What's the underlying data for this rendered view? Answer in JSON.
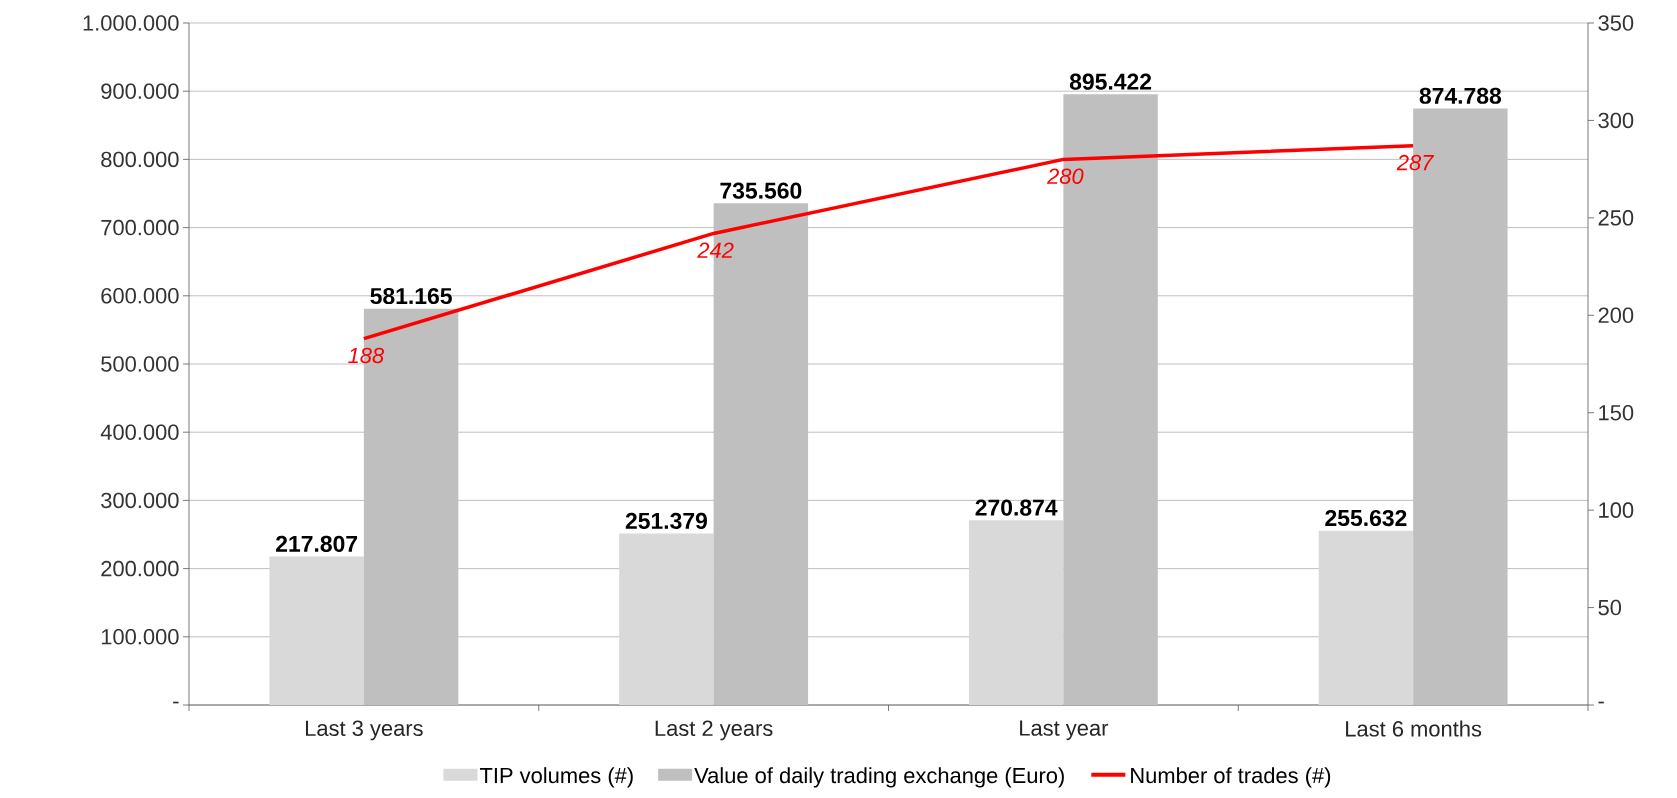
{
  "chart_data": {
    "type": "bar",
    "categories": [
      "Last 3 years",
      "Last 2 years",
      "Last year",
      "Last 6 months"
    ],
    "ylim": [
      0,
      1000000
    ],
    "yticks": [
      {
        "value": 0,
        "label": "-"
      },
      {
        "value": 100000,
        "label": "100.000"
      },
      {
        "value": 200000,
        "label": "200.000"
      },
      {
        "value": 300000,
        "label": "300.000"
      },
      {
        "value": 400000,
        "label": "400.000"
      },
      {
        "value": 500000,
        "label": "500.000"
      },
      {
        "value": 600000,
        "label": "600.000"
      },
      {
        "value": 700000,
        "label": "700.000"
      },
      {
        "value": 800000,
        "label": "800.000"
      },
      {
        "value": 900000,
        "label": "900.000"
      },
      {
        "value": 1000000,
        "label": "1.000.000"
      }
    ],
    "y2lim": [
      0,
      350
    ],
    "y2ticks": [
      {
        "value": 0,
        "label": "-"
      },
      50,
      100,
      150,
      200,
      250,
      300,
      350
    ],
    "grid": "y",
    "legend": "bottom",
    "series": [
      {
        "name": "TIP volumes (#)",
        "color": "#d9d9d9",
        "values": [
          217807,
          251379,
          270874,
          255632
        ],
        "value_labels": [
          "217.807",
          "251.379",
          "270.874",
          "255.632"
        ]
      },
      {
        "name": "Value of daily trading exchange (Euro)",
        "color": "#bfbfbf",
        "values": [
          581165,
          735560,
          895422,
          874788
        ],
        "value_labels": [
          "581.165",
          "735.560",
          "895.422",
          "874.788"
        ]
      },
      {
        "name": "Number of trades (#)",
        "type": "line",
        "axis": "y2",
        "color": "#ff0000",
        "values": [
          188,
          242,
          280,
          287
        ],
        "value_labels": [
          "188",
          "242",
          "280",
          "287"
        ]
      }
    ]
  }
}
